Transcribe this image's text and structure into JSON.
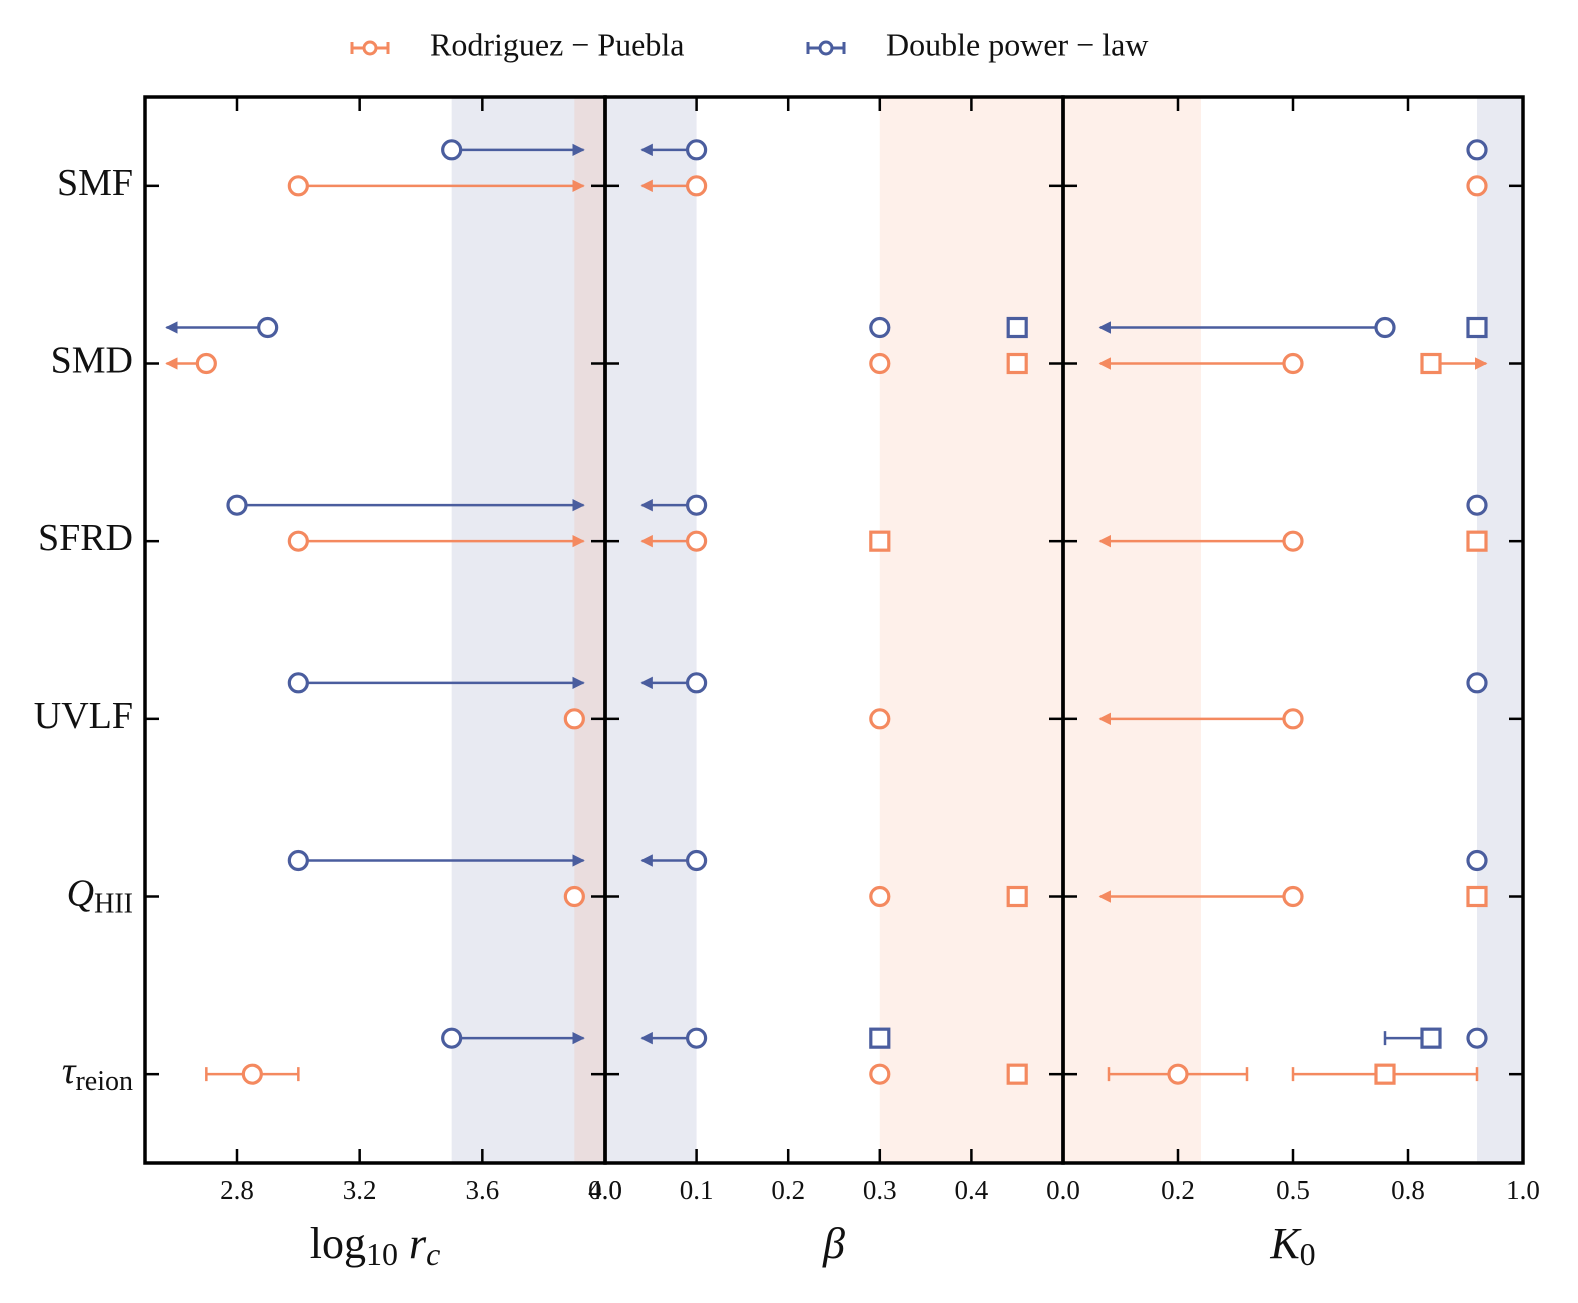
{
  "chart_data": {
    "type": "forest",
    "series": [
      {
        "name": "Rodriguez − Puebla",
        "color": "#f4895f"
      },
      {
        "name": "Double power − law",
        "color": "#4a5d9e"
      }
    ],
    "categories": [
      {
        "text": "SMF"
      },
      {
        "text": "SMD"
      },
      {
        "text": "SFRD"
      },
      {
        "text": "UVLF"
      },
      {
        "text": "Q",
        "sub": "HII"
      },
      {
        "text": "τ",
        "sub": "reion"
      }
    ],
    "panels": [
      {
        "xlabel": [
          {
            "text": "log",
            "style": "normal"
          },
          {
            "text": "10",
            "style": "sub"
          },
          {
            "text": " r",
            "style": "italic"
          },
          {
            "text": "c",
            "style": "italic-sub"
          }
        ],
        "xlim": [
          2.5,
          4.0
        ],
        "xticks": [
          2.8,
          3.2,
          3.6,
          {
            "value": 4,
            "label": "4.0"
          }
        ],
        "bands": [
          {
            "series": 1,
            "range": [
              3.5,
              4.0
            ]
          },
          {
            "series": 0,
            "range": [
              3.9,
              4.0
            ]
          }
        ],
        "points": [
          {
            "series": 1,
            "category": 0,
            "marker": "circle",
            "value": 3.5,
            "arrow_to": 3.93
          },
          {
            "series": 0,
            "category": 0,
            "marker": "circle",
            "value": 3.0,
            "arrow_to": 3.93
          },
          {
            "series": 1,
            "category": 1,
            "marker": "circle",
            "value": 2.9,
            "arrow_to": 2.57
          },
          {
            "series": 0,
            "category": 1,
            "marker": "circle",
            "value": 2.7,
            "arrow_to": 2.57
          },
          {
            "series": 1,
            "category": 2,
            "marker": "circle",
            "value": 2.8,
            "arrow_to": 3.93
          },
          {
            "series": 0,
            "category": 2,
            "marker": "circle",
            "value": 3.0,
            "arrow_to": 3.93
          },
          {
            "series": 1,
            "category": 3,
            "marker": "circle",
            "value": 3.0,
            "arrow_to": 3.93
          },
          {
            "series": 0,
            "category": 3,
            "marker": "circle",
            "value": 3.9
          },
          {
            "series": 1,
            "category": 4,
            "marker": "circle",
            "value": 3.0,
            "arrow_to": 3.93
          },
          {
            "series": 0,
            "category": 4,
            "marker": "circle",
            "value": 3.9
          },
          {
            "series": 1,
            "category": 5,
            "marker": "circle",
            "value": 3.5,
            "arrow_to": 3.93
          },
          {
            "series": 0,
            "category": 5,
            "marker": "circle",
            "value": 2.85,
            "error": [
              2.7,
              3.0
            ]
          }
        ]
      },
      {
        "xlabel": [
          {
            "text": "β",
            "style": "italic"
          }
        ],
        "xlim": [
          0,
          0.5
        ],
        "xticks": [
          {
            "value": 0,
            "label": "0.0"
          },
          0.1,
          0.2,
          0.3,
          0.4
        ],
        "bands": [
          {
            "series": 1,
            "range": [
              0,
              0.1
            ]
          },
          {
            "series": 0,
            "range": [
              0.3,
              0.5
            ]
          }
        ],
        "points": [
          {
            "series": 1,
            "category": 0,
            "marker": "circle",
            "value": 0.1,
            "arrow_to": 0.04
          },
          {
            "series": 0,
            "category": 0,
            "marker": "circle",
            "value": 0.1,
            "arrow_to": 0.04
          },
          {
            "series": 1,
            "category": 1,
            "marker": "circle",
            "value": 0.3
          },
          {
            "series": 1,
            "category": 1,
            "marker": "square",
            "value": 0.45
          },
          {
            "series": 0,
            "category": 1,
            "marker": "circle",
            "value": 0.3
          },
          {
            "series": 0,
            "category": 1,
            "marker": "square",
            "value": 0.45
          },
          {
            "series": 1,
            "category": 2,
            "marker": "circle",
            "value": 0.1,
            "arrow_to": 0.04
          },
          {
            "series": 0,
            "category": 2,
            "marker": "circle",
            "value": 0.1,
            "arrow_to": 0.04
          },
          {
            "series": 0,
            "category": 2,
            "marker": "square",
            "value": 0.3
          },
          {
            "series": 1,
            "category": 3,
            "marker": "circle",
            "value": 0.1,
            "arrow_to": 0.04
          },
          {
            "series": 0,
            "category": 3,
            "marker": "circle",
            "value": 0.3
          },
          {
            "series": 1,
            "category": 4,
            "marker": "circle",
            "value": 0.1,
            "arrow_to": 0.04
          },
          {
            "series": 0,
            "category": 4,
            "marker": "circle",
            "value": 0.3
          },
          {
            "series": 0,
            "category": 4,
            "marker": "square",
            "value": 0.45
          },
          {
            "series": 1,
            "category": 5,
            "marker": "circle",
            "value": 0.1,
            "arrow_to": 0.04
          },
          {
            "series": 1,
            "category": 5,
            "marker": "square",
            "value": 0.3
          },
          {
            "series": 0,
            "category": 5,
            "marker": "circle",
            "value": 0.3
          },
          {
            "series": 0,
            "category": 5,
            "marker": "square",
            "value": 0.45
          }
        ]
      },
      {
        "xlabel": [
          {
            "text": "K",
            "style": "italic"
          },
          {
            "text": "0",
            "style": "sub"
          }
        ],
        "xlim": [
          0,
          1
        ],
        "xticks": [
          {
            "value": 0,
            "label": "0.0"
          },
          {
            "value": 0.25,
            "label": "0.2"
          },
          0.5,
          {
            "value": 0.75,
            "label": "0.8"
          },
          {
            "value": 1,
            "label": "1.0"
          }
        ],
        "bands": [
          {
            "series": 0,
            "range": [
              0,
              0.3
            ]
          },
          {
            "series": 1,
            "range": [
              0.9,
              1.0
            ]
          }
        ],
        "points": [
          {
            "series": 1,
            "category": 0,
            "marker": "circle",
            "value": 0.9
          },
          {
            "series": 0,
            "category": 0,
            "marker": "circle",
            "value": 0.9
          },
          {
            "series": 1,
            "category": 1,
            "marker": "circle",
            "value": 0.7,
            "arrow_to": 0.08
          },
          {
            "series": 1,
            "category": 1,
            "marker": "square",
            "value": 0.9
          },
          {
            "series": 0,
            "category": 1,
            "marker": "circle",
            "value": 0.5,
            "arrow_to": 0.08
          },
          {
            "series": 0,
            "category": 1,
            "marker": "square",
            "value": 0.8,
            "arrow_to": 0.92
          },
          {
            "series": 1,
            "category": 2,
            "marker": "circle",
            "value": 0.9
          },
          {
            "series": 0,
            "category": 2,
            "marker": "circle",
            "value": 0.5,
            "arrow_to": 0.08
          },
          {
            "series": 0,
            "category": 2,
            "marker": "square",
            "value": 0.9
          },
          {
            "series": 1,
            "category": 3,
            "marker": "circle",
            "value": 0.9
          },
          {
            "series": 0,
            "category": 3,
            "marker": "circle",
            "value": 0.5,
            "arrow_to": 0.08
          },
          {
            "series": 1,
            "category": 4,
            "marker": "circle",
            "value": 0.9
          },
          {
            "series": 0,
            "category": 4,
            "marker": "circle",
            "value": 0.5,
            "arrow_to": 0.08
          },
          {
            "series": 0,
            "category": 4,
            "marker": "square",
            "value": 0.9
          },
          {
            "series": 1,
            "category": 5,
            "marker": "square",
            "value": 0.8,
            "error": [
              0.7,
              0.8
            ]
          },
          {
            "series": 1,
            "category": 5,
            "marker": "circle",
            "value": 0.9
          },
          {
            "series": 0,
            "category": 5,
            "marker": "circle",
            "value": 0.25,
            "error": [
              0.1,
              0.4
            ]
          },
          {
            "series": 0,
            "category": 5,
            "marker": "square",
            "value": 0.7,
            "error": [
              0.5,
              0.9
            ]
          }
        ]
      }
    ]
  }
}
